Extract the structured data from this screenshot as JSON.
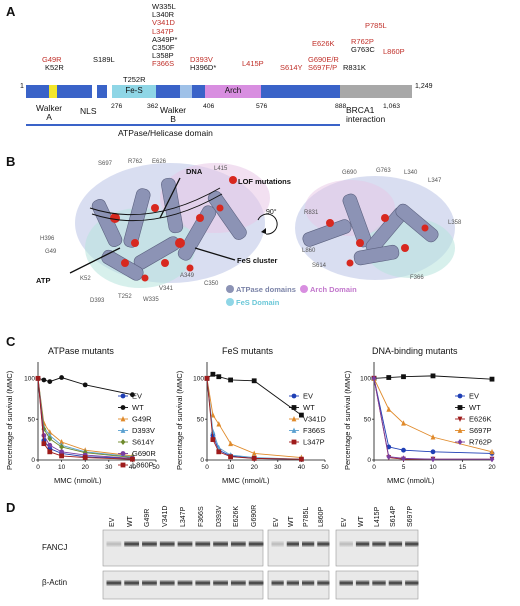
{
  "panelA": {
    "letter": "A",
    "start": "1",
    "end": "1,249",
    "mutations": {
      "g49r": "G49R",
      "k52r": "K52R",
      "s189l": "S189L",
      "t252r": "T252R",
      "stack_w335": [
        "W335L",
        "L340R",
        "V341D",
        "L347P",
        "A349P*",
        "C350F",
        "L358P",
        "F366S"
      ],
      "d393v": "D393V",
      "h396d": "H396D*",
      "l415p": "L415P",
      "s614y": "S614Y",
      "e626k": "E626K",
      "g690": "G690E/R",
      "s697": "S697F/P",
      "p785l": "P785L",
      "r762p": "R762P",
      "g763c": "G763C",
      "r831k": "R831K",
      "l860p": "L860P"
    },
    "domains": {
      "fes": "Fe-S",
      "arch": "Arch"
    },
    "positions": [
      "276",
      "362",
      "406",
      "576",
      "888",
      "1,063"
    ],
    "labels": {
      "walkerA": [
        "Walker",
        "A"
      ],
      "nls": "NLS",
      "walkerB": [
        "Walker",
        "B"
      ],
      "brca1": [
        "BRCA1",
        "interaction"
      ],
      "atpase": "ATPase/Helicase domain"
    }
  },
  "panelB": {
    "letter": "B",
    "labels": {
      "dna": "DNA",
      "lof": "LOF mutations",
      "atp": "ATP",
      "fes_cluster": "FeS cluster",
      "rot": "90°",
      "legend_atpase": "ATPase domains",
      "legend_fes": "FeS Domain",
      "legend_arch": "Arch Domain"
    },
    "residues_left": [
      "S697",
      "R762",
      "E626",
      "L415",
      "H396",
      "G49",
      "K52",
      "D393",
      "T252",
      "W335",
      "V341",
      "A349",
      "C350"
    ],
    "residues_right": [
      "G690",
      "G763",
      "L340",
      "L347",
      "R831",
      "L358",
      "L860",
      "S614",
      "F366"
    ]
  },
  "panelC": {
    "letter": "C",
    "ylabel": "Percentage of survival (MMC)",
    "xlabel": "MMC (nmol/L)",
    "charts": [
      {
        "type": "line",
        "title": "ATPase mutants",
        "xlim": [
          0,
          50
        ],
        "ylim": [
          0,
          120
        ],
        "xticks": [
          "0",
          "10",
          "20",
          "30",
          "40",
          "50"
        ],
        "yticks": [
          "0",
          "50",
          "100"
        ],
        "x": [
          0,
          2.5,
          5,
          10,
          20,
          40
        ],
        "series": [
          {
            "name": "EV",
            "color": "#1f3fb5",
            "marker": "circle",
            "values": [
              100,
              24,
              14,
              8,
              4,
              2
            ]
          },
          {
            "name": "WT",
            "color": "#111111",
            "marker": "circle",
            "values": [
              100,
              98,
              96,
              101,
              92,
              80
            ]
          },
          {
            "name": "G49R",
            "color": "#e08a2a",
            "marker": "triangle",
            "values": [
              100,
              45,
              34,
              22,
              12,
              5
            ]
          },
          {
            "name": "D393V",
            "color": "#5aa0d0",
            "marker": "triangle",
            "values": [
              100,
              40,
              30,
              18,
              10,
              4
            ]
          },
          {
            "name": "S614Y",
            "color": "#6e8a2c",
            "marker": "diamond",
            "values": [
              100,
              38,
              26,
              16,
              9,
              3
            ]
          },
          {
            "name": "G690R",
            "color": "#7a3ea0",
            "marker": "circle",
            "values": [
              100,
              30,
              18,
              10,
              6,
              2
            ]
          },
          {
            "name": "L860P",
            "color": "#9e1b1b",
            "marker": "square",
            "values": [
              100,
              20,
              10,
              5,
              3,
              1
            ]
          }
        ]
      },
      {
        "type": "line",
        "title": "FeS mutants",
        "xlim": [
          0,
          50
        ],
        "ylim": [
          0,
          120
        ],
        "xticks": [
          "0",
          "10",
          "20",
          "30",
          "40",
          "50"
        ],
        "yticks": [
          "0",
          "50",
          "100"
        ],
        "x": [
          0,
          2.5,
          5,
          10,
          20,
          40
        ],
        "series": [
          {
            "name": "EV",
            "color": "#1f3fb5",
            "marker": "circle",
            "values": [
              100,
              30,
              12,
              5,
              2,
              1
            ]
          },
          {
            "name": "WT",
            "color": "#111111",
            "marker": "square",
            "values": [
              100,
              105,
              102,
              98,
              97,
              55
            ]
          },
          {
            "name": "V341D",
            "color": "#e08a2a",
            "marker": "triangle",
            "values": [
              100,
              55,
              44,
              20,
              8,
              3
            ]
          },
          {
            "name": "F366S",
            "color": "#5aa0d0",
            "marker": "triangle",
            "values": [
              100,
              35,
              15,
              6,
              3,
              1
            ]
          },
          {
            "name": "L347P",
            "color": "#9e1b1b",
            "marker": "square",
            "values": [
              100,
              25,
              10,
              4,
              2,
              1
            ]
          }
        ]
      },
      {
        "type": "line",
        "title": "DNA-binding mutants",
        "xlim": [
          0,
          20
        ],
        "ylim": [
          0,
          120
        ],
        "xticks": [
          "0",
          "5",
          "10",
          "15",
          "20"
        ],
        "yticks": [
          "0",
          "50",
          "100"
        ],
        "x": [
          0,
          2.5,
          5,
          10,
          20
        ],
        "series": [
          {
            "name": "EV",
            "color": "#1f3fb5",
            "marker": "circle",
            "values": [
              100,
              16,
              12,
              10,
              8
            ]
          },
          {
            "name": "WT",
            "color": "#111111",
            "marker": "square",
            "values": [
              100,
              101,
              102,
              103,
              99
            ]
          },
          {
            "name": "E626K",
            "color": "#9e1b1b",
            "marker": "triangle-down",
            "values": [
              100,
              3,
              1,
              1,
              1
            ]
          },
          {
            "name": "S697P",
            "color": "#e08a2a",
            "marker": "triangle",
            "values": [
              100,
              62,
              45,
              28,
              10
            ]
          },
          {
            "name": "R762P",
            "color": "#7a3ea0",
            "marker": "diamond",
            "values": [
              100,
              4,
              2,
              1,
              1
            ]
          }
        ]
      }
    ]
  },
  "panelD": {
    "letter": "D",
    "rows": [
      "FANCJ",
      "β-Actin"
    ],
    "lanes_1": [
      "EV",
      "WT",
      "G49R",
      "V341D",
      "L347P",
      "F366S",
      "D393V",
      "E626K",
      "G690R"
    ],
    "lanes_2": [
      "EV",
      "WT",
      "P785L",
      "L860P"
    ],
    "lanes_3": [
      "EV",
      "WT",
      "L415P",
      "S614P",
      "S697P"
    ]
  }
}
